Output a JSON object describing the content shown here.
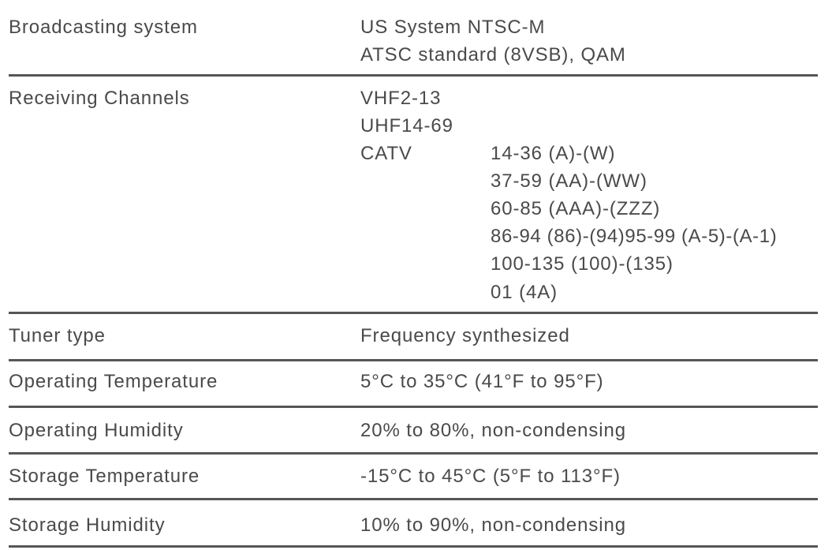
{
  "rows": [
    {
      "label": "Broadcasting system",
      "values": [
        "US System NTSC-M",
        "ATSC standard (8VSB), QAM"
      ]
    },
    {
      "label": "Receiving Channels",
      "values": [
        "VHF2-13",
        "UHF14-69"
      ],
      "catv": {
        "label": "CATV",
        "values": [
          "14-36 (A)-(W)",
          "37-59 (AA)-(WW)",
          "60-85 (AAA)-(ZZZ)",
          "86-94 (86)-(94)95-99 (A-5)-(A-1)",
          "100-135 (100)-(135)",
          "01 (4A)"
        ]
      }
    },
    {
      "label": "Tuner type",
      "values": [
        "Frequency synthesized"
      ]
    },
    {
      "label": "Operating Temperature",
      "values": [
        "5°C to 35°C (41°F to 95°F)"
      ]
    },
    {
      "label": "Operating Humidity",
      "values": [
        "20% to 80%, non-condensing"
      ]
    },
    {
      "label": "Storage Temperature",
      "values": [
        "-15°C to 45°C (5°F to 113°F)"
      ]
    },
    {
      "label": "Storage Humidity",
      "values": [
        "10% to 90%, non-condensing"
      ]
    }
  ]
}
